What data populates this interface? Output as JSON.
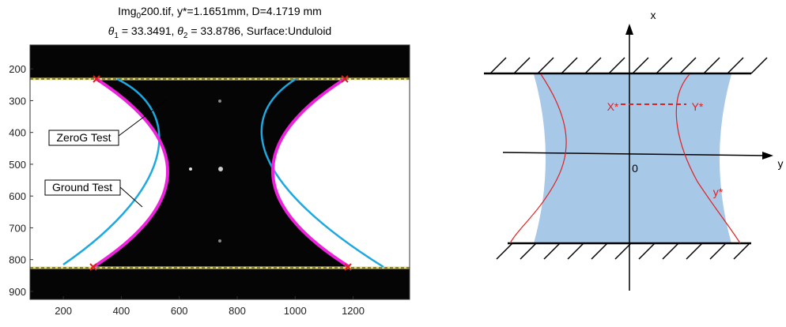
{
  "chart_data": {
    "type": "image",
    "title": [
      [
        "Img",
        "0",
        "200.tif, y*=1.1651mm, D=4.1719 mm"
      ],
      [
        "θ",
        "1",
        " = 33.3491, ",
        "θ",
        "2",
        " = 33.8786, Surface:Unduloid"
      ]
    ],
    "annotations": [
      "ZeroG Test",
      "Ground Test"
    ],
    "xlim": [
      85,
      1395
    ],
    "ylim": [
      925,
      125
    ],
    "xticks": [
      200,
      400,
      600,
      800,
      1000,
      1200
    ],
    "yticks": [
      200,
      300,
      400,
      500,
      600,
      700,
      800,
      900
    ]
  },
  "diagram": {
    "axis_x": "x",
    "axis_y": "y",
    "origin": "0",
    "point_x": "X*",
    "point_y": "Y*",
    "profile": "y*"
  }
}
